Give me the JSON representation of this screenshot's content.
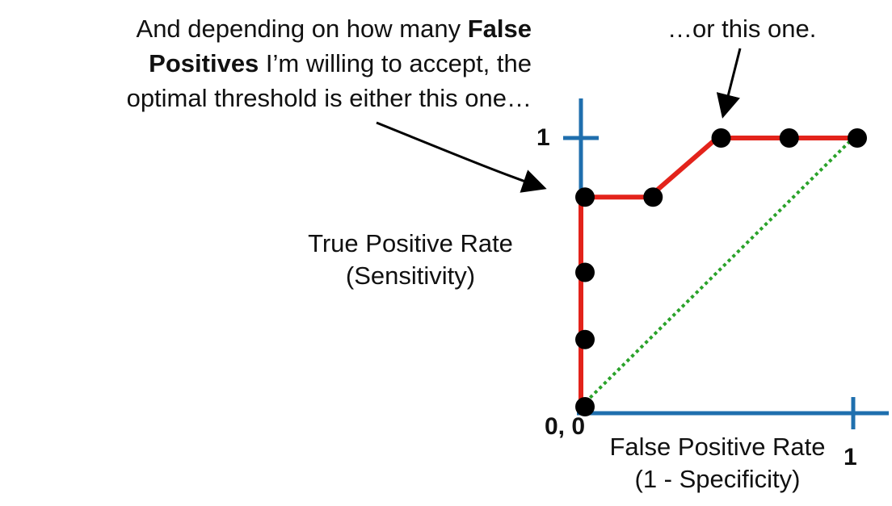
{
  "chart_data": {
    "type": "line",
    "xlabel_lines": [
      "False Positive Rate",
      "(1 - Specificity)"
    ],
    "ylabel_lines": [
      "True Positive Rate",
      "(Sensitivity)"
    ],
    "xlim": [
      0,
      1
    ],
    "ylim": [
      0,
      1
    ],
    "tick_labels": {
      "origin": "0, 0",
      "x_max": "1",
      "y_max": "1"
    },
    "grid": false,
    "series": [
      {
        "style": "solid",
        "color": "#e3231b",
        "points": [
          [
            0,
            0
          ],
          [
            0,
            0.25
          ],
          [
            0,
            0.5
          ],
          [
            0,
            0.78
          ],
          [
            0.25,
            0.78
          ],
          [
            0.5,
            1
          ],
          [
            0.75,
            1
          ],
          [
            1,
            1
          ]
        ],
        "path": [
          [
            0,
            0
          ],
          [
            0,
            0.78
          ],
          [
            0.25,
            0.78
          ],
          [
            0.5,
            1
          ],
          [
            1,
            1
          ]
        ]
      },
      {
        "style": "dotted",
        "color": "#2aa22a",
        "points": [
          [
            0,
            0
          ],
          [
            1,
            1
          ]
        ]
      }
    ],
    "annotations": {
      "left": {
        "parts": [
          {
            "text": "And depending on how many ",
            "bold": false
          },
          {
            "text": "False Positives",
            "bold": true
          },
          {
            "text": " I’m willing to accept, the optimal threshold is either this one…",
            "bold": false
          }
        ],
        "points_to": [
          0,
          0.78
        ]
      },
      "right": {
        "text": "…or this one.",
        "points_to": [
          0.5,
          1
        ]
      }
    }
  },
  "colors": {
    "axis": "#1f6fae",
    "roc_line": "#e3231b",
    "diagonal": "#2aa22a",
    "points": "#000000",
    "arrows": "#000000"
  }
}
